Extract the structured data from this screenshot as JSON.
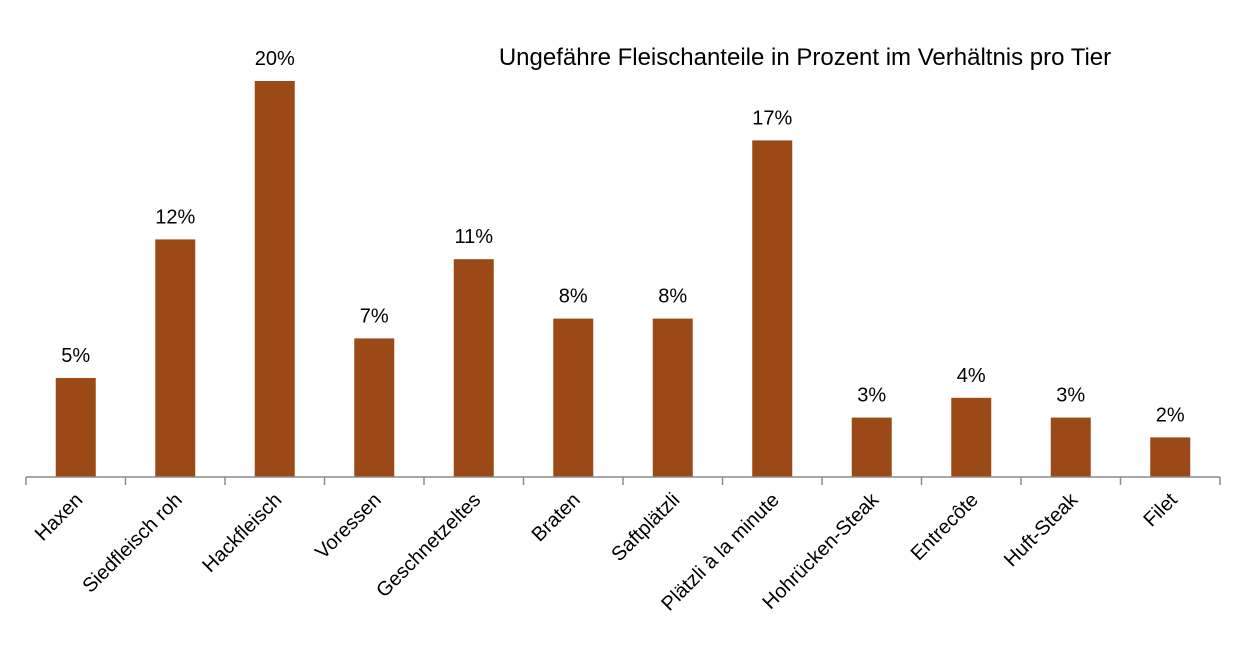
{
  "chart_data": {
    "type": "bar",
    "title": "Ungefähre Fleischanteile in Prozent im Verhältnis pro Tier",
    "xlabel": "",
    "ylabel": "",
    "categories": [
      "Haxen",
      "Siedfleisch roh",
      "Hackfleisch",
      "Voressen",
      "Geschnetzeltes",
      "Braten",
      "Saftplätzli",
      "Plätzli à la minute",
      "Hohrücken-Steak",
      "Entrecôte",
      "Huft-Steak",
      "Filet"
    ],
    "values": [
      5,
      12,
      20,
      7,
      11,
      8,
      8,
      17,
      3,
      4,
      3,
      2
    ],
    "data_labels": [
      "5%",
      "12%",
      "20%",
      "7%",
      "11%",
      "8%",
      "8%",
      "17%",
      "3%",
      "4%",
      "3%",
      "2%"
    ],
    "ylim": [
      0,
      20
    ],
    "grid": false,
    "legend": "none",
    "bar_color": "#9b4a17",
    "axis_color": "#8c8c8c"
  }
}
